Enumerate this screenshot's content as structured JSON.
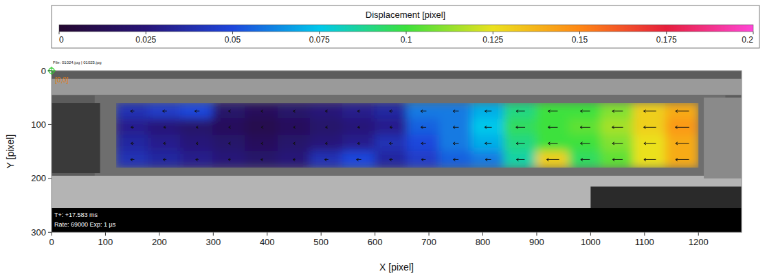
{
  "chart_data": {
    "type": "heatmap",
    "title": "Displacement [pixel]",
    "x_label": "X [pixel]",
    "y_label": "Y [pixel]",
    "xlim": [
      0,
      1280
    ],
    "ylim": [
      0,
      300
    ],
    "xticks": [
      0,
      100,
      200,
      300,
      400,
      500,
      600,
      700,
      800,
      900,
      1000,
      1100,
      1200
    ],
    "yticks": [
      0,
      100,
      200,
      300
    ],
    "color_range": [
      0,
      0.2
    ],
    "color_ticks": [
      0,
      0.025,
      0.05,
      0.075,
      0.1,
      0.125,
      0.15,
      0.175,
      0.2
    ],
    "x": [
      120,
      180,
      240,
      300,
      360,
      420,
      480,
      540,
      600,
      660,
      720,
      780,
      840,
      900,
      960,
      1020,
      1080,
      1140,
      1200
    ],
    "y": [
      60,
      90,
      120,
      150,
      180
    ],
    "cells": [
      [
        0.04,
        0.045,
        0.05,
        0.02,
        0.015,
        0.02,
        0.025,
        0.03,
        0.035,
        0.06,
        0.06,
        0.07,
        0.09,
        0.1,
        0.1,
        0.11,
        0.13,
        0.14
      ],
      [
        0.03,
        0.025,
        0.02,
        0.015,
        0.01,
        0.015,
        0.02,
        0.025,
        0.03,
        0.055,
        0.06,
        0.075,
        0.095,
        0.1,
        0.105,
        0.115,
        0.13,
        0.145
      ],
      [
        0.035,
        0.03,
        0.025,
        0.02,
        0.015,
        0.02,
        0.025,
        0.03,
        0.04,
        0.05,
        0.06,
        0.07,
        0.09,
        0.1,
        0.1,
        0.11,
        0.125,
        0.14
      ],
      [
        0.04,
        0.035,
        0.03,
        0.025,
        0.02,
        0.025,
        0.04,
        0.05,
        0.035,
        0.045,
        0.055,
        0.06,
        0.085,
        0.13,
        0.095,
        0.105,
        0.125,
        0.14
      ]
    ],
    "annotations": {
      "file": "File: 01024.jpg | 01025.jpg",
      "origin": "[0,0]",
      "time": "T+: +17.583 ms",
      "rate": "Rate: 69000  Exp: 1 µs"
    }
  }
}
